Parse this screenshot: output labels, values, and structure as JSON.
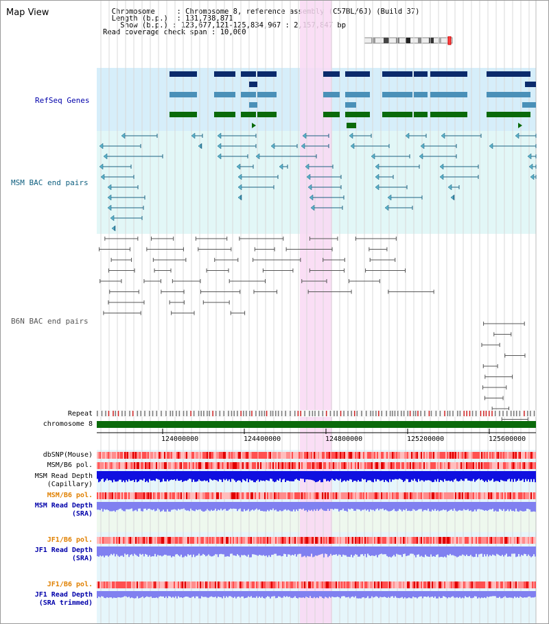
{
  "title": "Map View",
  "info": {
    "chromosome_label": "Chromosome",
    "chromosome_value": "Chromosome 8, reference assembly (C57BL/6J) (Build 37)",
    "length_label": "Length (b.p.)",
    "length_value": "131,738,871",
    "show_label": "Show (b.p.)",
    "show_value": "123,677,121-125,834,967 : 2,157,847 bp",
    "span_label": "Read coverage check span",
    "span_value": "10,000"
  },
  "tracks": {
    "refseq": "RefSeq Genes",
    "msm_bac": "MSM BAC end pairs",
    "b6n_bac": "B6N BAC end pairs",
    "repeat": "Repeat",
    "chromosome": "chromosome 8",
    "dbsnp": "dbSNP(Mouse)",
    "msm_b6_pol": "MSM/B6 pol.",
    "msm_depth_cap_1": "MSM Read Depth",
    "msm_depth_cap_2": "(Capillary)",
    "msm_b6_pol_2": "MSM/B6 pol.",
    "msm_depth_sra_1": "MSM Read Depth",
    "msm_depth_sra_2": "(SRA)",
    "jf1_b6_pol": "JF1/B6 pol.",
    "jf1_depth_sra_1": "JF1 Read Depth",
    "jf1_depth_sra_2": "(SRA)",
    "jf1_b6_pol_2": "JF1/B6 pol.",
    "jf1_depth_trim_1": "JF1 Read Depth",
    "jf1_depth_trim_2": "(SRA trimmed)"
  },
  "axis": {
    "ticks": [
      "124000000",
      "124400000",
      "124800000",
      "125200000",
      "125600000"
    ]
  },
  "colors": {
    "refseq_bg": "#d6eefa",
    "gene_dark": "#0b2a6b",
    "gene_mid": "#4a90b8",
    "gene_green": "#0a6a0a",
    "msm_bg": "#e2f7f7",
    "msm_line": "#1a6080",
    "b6n_line": "#555555",
    "highlight": "#f9d8f3",
    "chrom_green": "#0a6a0a",
    "snp_red": "#ff7070",
    "depth_blue": "#1010e0",
    "depth_light": "#8080f0"
  }
}
